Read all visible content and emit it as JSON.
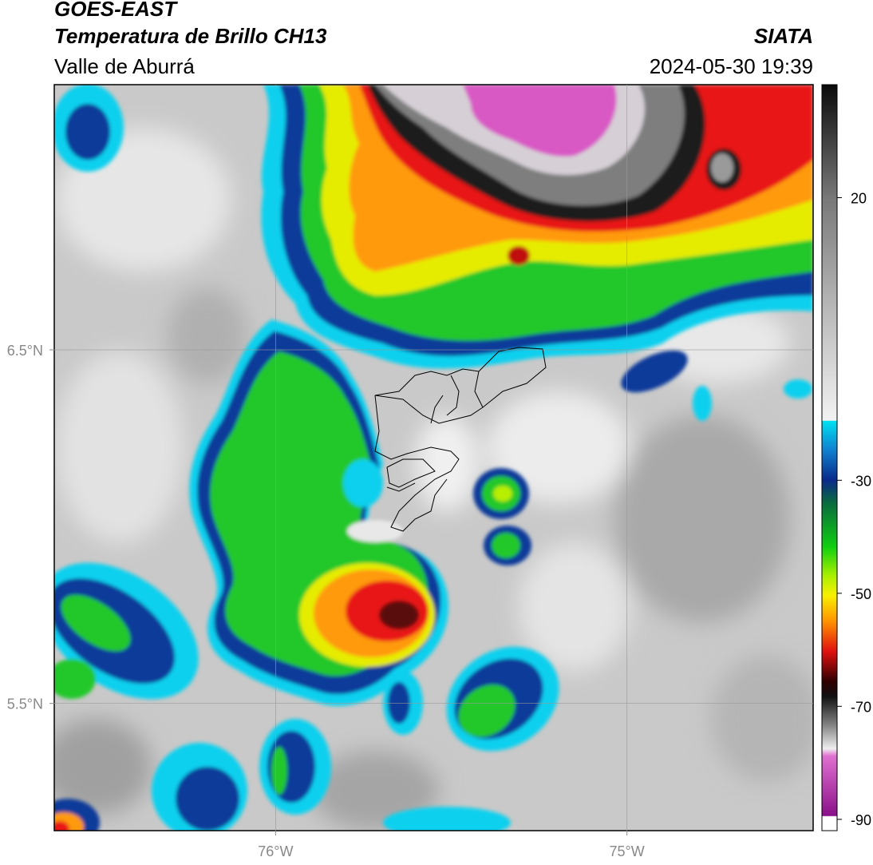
{
  "header": {
    "title": "GOES-EAST",
    "subtitle": "Temperatura de Brillo CH13",
    "region": "Valle de Aburrá",
    "source": "SIATA",
    "timestamp": "2024-05-30 19:39"
  },
  "map": {
    "xlim": [
      -76.63,
      -74.47
    ],
    "ylim": [
      5.14,
      7.25
    ],
    "xticks": [
      {
        "value": -76,
        "label": "76°W"
      },
      {
        "value": -75,
        "label": "75°W"
      }
    ],
    "yticks": [
      {
        "value": 5.5,
        "label": "5.5°N"
      },
      {
        "value": 6.5,
        "label": "6.5°N"
      }
    ],
    "grid": true
  },
  "colorbar": {
    "lim": [
      -92,
      40
    ],
    "ticks": [
      20,
      -30,
      -50,
      -70,
      -90
    ]
  }
}
